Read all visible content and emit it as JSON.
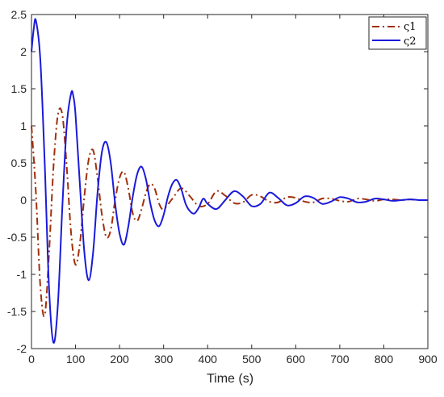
{
  "chart_data": {
    "type": "line",
    "xlabel": "Time (s)",
    "ylabel": "",
    "xlim": [
      0,
      900
    ],
    "ylim": [
      -2,
      2.5
    ],
    "x_ticks": [
      0,
      100,
      200,
      300,
      400,
      500,
      600,
      700,
      800,
      900
    ],
    "y_ticks": [
      2.5,
      2,
      1.5,
      1,
      0.5,
      0,
      -0.5,
      -1,
      -1.5,
      -2
    ],
    "x_tick_labels": [
      "0",
      "100",
      "200",
      "300",
      "400",
      "500",
      "600",
      "700",
      "800",
      "900"
    ],
    "y_tick_labels": [
      "2.5",
      "2",
      "1.5",
      "1",
      "0.5",
      "0",
      "-0.5",
      "-1",
      "-1.5",
      "-2"
    ],
    "grid": false,
    "legend_position": "top-right",
    "series": [
      {
        "name": "ς1",
        "color": "#a0300a",
        "line_style": "dash-dot",
        "x": [
          0,
          10,
          20,
          30,
          40,
          50,
          60,
          70,
          80,
          90,
          100,
          110,
          120,
          130,
          140,
          150,
          160,
          170,
          180,
          190,
          200,
          210,
          220,
          230,
          240,
          250,
          260,
          270,
          280,
          290,
          300,
          320,
          340,
          360,
          380,
          400,
          420,
          440,
          460,
          480,
          500,
          520,
          540,
          560,
          580,
          600,
          620,
          640,
          660,
          680,
          700,
          720,
          740,
          760,
          780,
          800,
          820,
          840,
          860,
          880,
          900
        ],
        "y": [
          1.0,
          0.1,
          -1.15,
          -1.55,
          -0.7,
          0.45,
          1.15,
          1.15,
          0.45,
          -0.45,
          -0.87,
          -0.58,
          0.05,
          0.55,
          0.67,
          0.3,
          -0.2,
          -0.5,
          -0.4,
          0.0,
          0.3,
          0.38,
          0.15,
          -0.18,
          -0.28,
          -0.12,
          0.1,
          0.22,
          0.15,
          -0.05,
          -0.12,
          0.02,
          0.16,
          0.05,
          -0.08,
          -0.05,
          0.12,
          0.06,
          -0.04,
          -0.03,
          0.07,
          0.05,
          -0.02,
          -0.03,
          0.04,
          0.03,
          -0.02,
          -0.03,
          0.02,
          0.02,
          -0.01,
          -0.02,
          0.02,
          0.01,
          -0.01,
          0.01,
          0.01,
          0.0,
          0.01,
          0.0,
          0.0
        ]
      },
      {
        "name": "ς2",
        "color": "#1a1adb",
        "line_style": "solid",
        "x": [
          0,
          5,
          10,
          20,
          30,
          40,
          50,
          60,
          70,
          80,
          90,
          95,
          100,
          110,
          120,
          130,
          140,
          150,
          160,
          170,
          180,
          190,
          200,
          210,
          220,
          230,
          240,
          250,
          260,
          270,
          280,
          290,
          300,
          310,
          320,
          330,
          340,
          350,
          360,
          370,
          380,
          390,
          400,
          420,
          440,
          460,
          480,
          500,
          520,
          540,
          560,
          580,
          600,
          620,
          640,
          660,
          680,
          700,
          720,
          740,
          760,
          780,
          800,
          820,
          840,
          860,
          880,
          900
        ],
        "y": [
          2.0,
          2.3,
          2.42,
          1.9,
          0.5,
          -1.2,
          -1.92,
          -1.4,
          -0.1,
          1.0,
          1.44,
          1.4,
          1.15,
          0.2,
          -0.7,
          -1.08,
          -0.7,
          0.1,
          0.65,
          0.78,
          0.5,
          -0.05,
          -0.45,
          -0.6,
          -0.35,
          0.05,
          0.35,
          0.45,
          0.28,
          -0.05,
          -0.28,
          -0.35,
          -0.2,
          0.05,
          0.22,
          0.27,
          0.15,
          -0.05,
          -0.15,
          -0.18,
          -0.1,
          0.02,
          -0.05,
          -0.12,
          0.0,
          0.12,
          0.05,
          -0.08,
          -0.05,
          0.1,
          0.03,
          -0.07,
          -0.04,
          0.05,
          0.03,
          -0.05,
          -0.02,
          0.04,
          0.02,
          -0.03,
          -0.02,
          0.02,
          0.01,
          -0.01,
          0.0,
          0.01,
          0.0,
          0.0
        ]
      }
    ]
  }
}
